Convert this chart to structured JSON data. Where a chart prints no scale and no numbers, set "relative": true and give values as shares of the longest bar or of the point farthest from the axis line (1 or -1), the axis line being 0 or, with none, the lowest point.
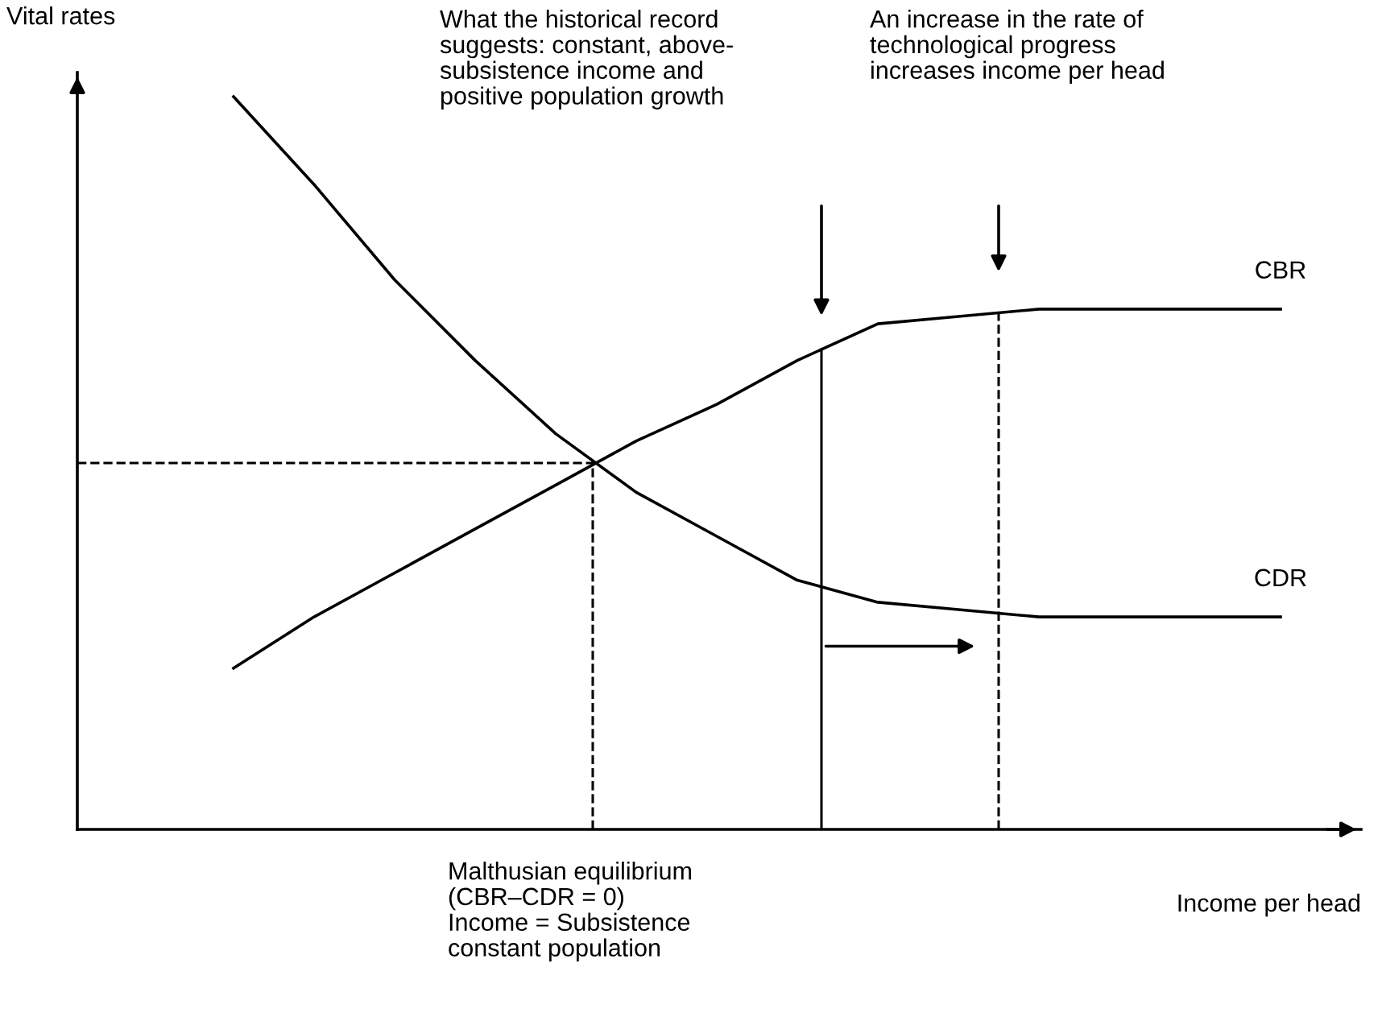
{
  "chart_data": {
    "type": "line",
    "relative": true,
    "xlabel": "Income per head",
    "ylabel": "Vital rates",
    "categories": [
      null,
      null,
      null,
      null,
      null,
      null,
      null,
      null,
      null,
      null,
      null,
      null,
      null,
      null
    ],
    "series": [
      {
        "name": "CBR",
        "color": "#000000",
        "values": [
          0.22,
          0.29,
          0.35,
          0.41,
          0.47,
          0.53,
          0.58,
          0.64,
          0.69,
          0.7,
          0.71,
          0.71,
          0.71,
          0.71
        ]
      },
      {
        "name": "CDR",
        "color": "#000000",
        "values": [
          1,
          0.88,
          0.75,
          0.64,
          0.54,
          0.46,
          0.4,
          0.34,
          0.31,
          0.3,
          0.29,
          0.29,
          0.29,
          0.29
        ]
      }
    ],
    "ref_lines": [
      {
        "axis": "y",
        "value": 0.5,
        "color": "#000000",
        "line_style": "dashed"
      }
    ],
    "annotations": [
      "What the historical record\nsuggests: constant, above-\nsubsistence income and\npositive population growth",
      "An increase in the rate of\ntechnological progress\nincreases income per head",
      "Malthusian equilibrium\n(CBR–CDR = 0)\nIncome = Subsistence\nconstant population"
    ],
    "legend": false,
    "marker": "none",
    "line_style": "solid"
  }
}
